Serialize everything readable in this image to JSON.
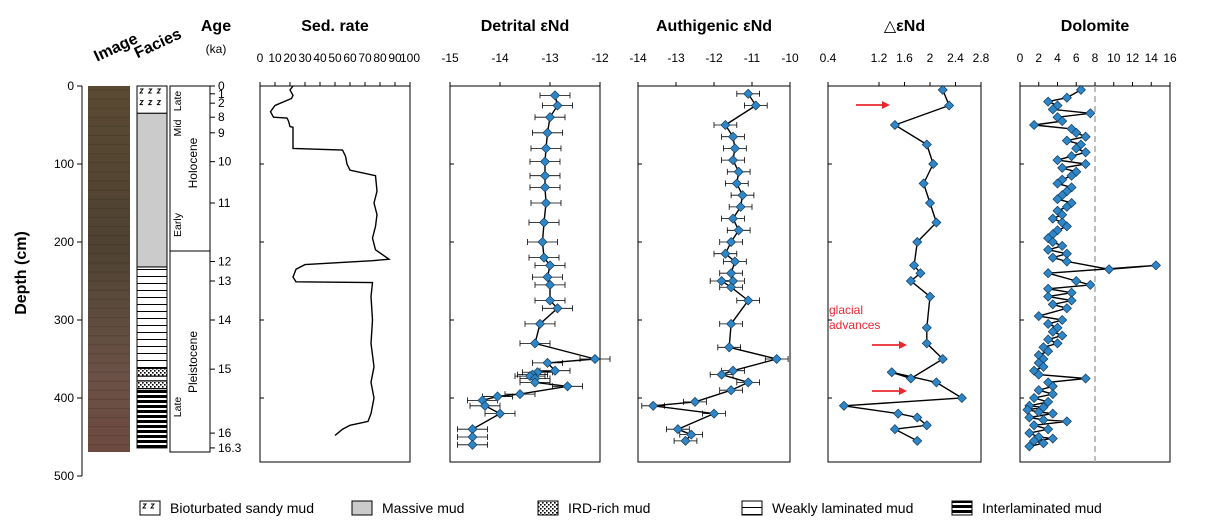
{
  "headers": {
    "image": "Image",
    "facies": "Facies",
    "age": "Age",
    "age_unit": "(ka)",
    "depth_axis": "Depth (cm)"
  },
  "depth_axis": {
    "min": 0,
    "max": 500,
    "ticks": [
      0,
      100,
      200,
      300,
      400,
      500
    ]
  },
  "age_ticks": [
    {
      "label": "0",
      "depth": 0
    },
    {
      "label": "1",
      "depth": 10
    },
    {
      "label": "2",
      "depth": 22
    },
    {
      "label": "8",
      "depth": 40
    },
    {
      "label": "9",
      "depth": 60
    },
    {
      "label": "10",
      "depth": 97
    },
    {
      "label": "11",
      "depth": 150
    },
    {
      "label": "12",
      "depth": 225
    },
    {
      "label": "13",
      "depth": 250
    },
    {
      "label": "14",
      "depth": 300
    },
    {
      "label": "15",
      "depth": 363
    },
    {
      "label": "16",
      "depth": 445
    },
    {
      "label": "16.3",
      "depth": 464
    }
  ],
  "epochs": {
    "holocene": "Holocene",
    "late_h": "Late",
    "mid_h": "Mid",
    "early_h": "Early",
    "pleistocene": "Pleistocene",
    "late_p": "Late"
  },
  "facies_units": [
    {
      "type": "bioturbated",
      "top": 0,
      "bottom": 35
    },
    {
      "type": "massive",
      "top": 35,
      "bottom": 232
    },
    {
      "type": "weak",
      "top": 232,
      "bottom": 362
    },
    {
      "type": "ird",
      "top": 362,
      "bottom": 372
    },
    {
      "type": "weak",
      "top": 372,
      "bottom": 378
    },
    {
      "type": "ird",
      "top": 378,
      "bottom": 388
    },
    {
      "type": "inter",
      "top": 388,
      "bottom": 464
    }
  ],
  "legend": [
    {
      "type": "bioturbated",
      "label": "Bioturbated sandy mud"
    },
    {
      "type": "massive",
      "label": "Massive mud"
    },
    {
      "type": "ird",
      "label": "IRD-rich mud"
    },
    {
      "type": "weak",
      "label": "Weakly laminated mud"
    },
    {
      "type": "inter",
      "label": "Interlaminated mud"
    }
  ],
  "annotations": {
    "glacial_line1": "glacial",
    "glacial_line2": "advances",
    "arrow_color": "#e8282e"
  },
  "colors": {
    "marker": "#2f86c6",
    "line": "#000000",
    "massive": "#cbcbcb",
    "dashed": "#aaaaaa"
  },
  "chart_data": [
    {
      "type": "line",
      "title": "Sed. rate",
      "xlim": [
        0,
        100
      ],
      "ticks": [
        0,
        10,
        20,
        30,
        40,
        50,
        60,
        70,
        80,
        90,
        100
      ],
      "points": [
        [
          22,
          0
        ],
        [
          20,
          5
        ],
        [
          22,
          12
        ],
        [
          21,
          16
        ],
        [
          10,
          25
        ],
        [
          7,
          33
        ],
        [
          9,
          40
        ],
        [
          18,
          41
        ],
        [
          19,
          45
        ],
        [
          20,
          52
        ],
        [
          22,
          53
        ],
        [
          22,
          65
        ],
        [
          22,
          80
        ],
        [
          55,
          82
        ],
        [
          57,
          90
        ],
        [
          58,
          100
        ],
        [
          60,
          108
        ],
        [
          77,
          115
        ],
        [
          78,
          135
        ],
        [
          76,
          150
        ],
        [
          78,
          165
        ],
        [
          77,
          180
        ],
        [
          75,
          195
        ],
        [
          77,
          210
        ],
        [
          86,
          222
        ],
        [
          75,
          224
        ],
        [
          30,
          229
        ],
        [
          24,
          235
        ],
        [
          22,
          245
        ],
        [
          24,
          251
        ],
        [
          75,
          252
        ],
        [
          74,
          270
        ],
        [
          75,
          300
        ],
        [
          74,
          330
        ],
        [
          76,
          360
        ],
        [
          74,
          380
        ],
        [
          76,
          400
        ],
        [
          74,
          420
        ],
        [
          72,
          430
        ],
        [
          60,
          435
        ],
        [
          55,
          440
        ],
        [
          50,
          448
        ]
      ]
    },
    {
      "type": "scatter",
      "title": "Detrital εNd",
      "xlim": [
        -15,
        -12
      ],
      "ticks": [
        -15,
        -14,
        -13,
        -12
      ],
      "points": [
        [
          -12.9,
          12
        ],
        [
          -12.85,
          25
        ],
        [
          -13.0,
          40
        ],
        [
          -13.05,
          60
        ],
        [
          -13.08,
          80
        ],
        [
          -13.1,
          97
        ],
        [
          -13.1,
          115
        ],
        [
          -13.1,
          130
        ],
        [
          -13.08,
          150
        ],
        [
          -13.12,
          175
        ],
        [
          -13.15,
          200
        ],
        [
          -13.12,
          220
        ],
        [
          -13.0,
          230
        ],
        [
          -13.05,
          245
        ],
        [
          -13.0,
          255
        ],
        [
          -13.0,
          275
        ],
        [
          -12.85,
          285
        ],
        [
          -13.2,
          305
        ],
        [
          -13.3,
          330
        ],
        [
          -12.1,
          350
        ],
        [
          -13.05,
          355
        ],
        [
          -12.9,
          365
        ],
        [
          -13.25,
          367
        ],
        [
          -13.35,
          370
        ],
        [
          -13.4,
          372
        ],
        [
          -13.3,
          375
        ],
        [
          -13.3,
          380
        ],
        [
          -12.65,
          385
        ],
        [
          -13.6,
          395
        ],
        [
          -14.05,
          398
        ],
        [
          -14.35,
          403
        ],
        [
          -14.3,
          410
        ],
        [
          -14.0,
          420
        ],
        [
          -14.55,
          440
        ],
        [
          -14.55,
          450
        ],
        [
          -14.55,
          460
        ]
      ]
    },
    {
      "type": "scatter",
      "title": "Authigenic εNd",
      "xlim": [
        -14,
        -10
      ],
      "ticks": [
        -14,
        -13,
        -12,
        -11,
        -10
      ],
      "points": [
        [
          -11.1,
          10
        ],
        [
          -10.9,
          25
        ],
        [
          -11.7,
          50
        ],
        [
          -11.5,
          65
        ],
        [
          -11.45,
          80
        ],
        [
          -11.5,
          95
        ],
        [
          -11.35,
          110
        ],
        [
          -11.4,
          125
        ],
        [
          -11.25,
          140
        ],
        [
          -11.3,
          155
        ],
        [
          -11.5,
          170
        ],
        [
          -11.35,
          185
        ],
        [
          -11.55,
          200
        ],
        [
          -11.7,
          215
        ],
        [
          -11.45,
          225
        ],
        [
          -11.55,
          240
        ],
        [
          -11.5,
          250
        ],
        [
          -11.8,
          250
        ],
        [
          -11.55,
          258
        ],
        [
          -11.1,
          275
        ],
        [
          -11.55,
          305
        ],
        [
          -11.6,
          335
        ],
        [
          -10.35,
          350
        ],
        [
          -11.5,
          365
        ],
        [
          -11.8,
          370
        ],
        [
          -11.1,
          380
        ],
        [
          -11.55,
          390
        ],
        [
          -12.5,
          405
        ],
        [
          -13.6,
          410
        ],
        [
          -12.0,
          420
        ],
        [
          -12.95,
          440
        ],
        [
          -12.6,
          447
        ],
        [
          -12.75,
          455
        ]
      ]
    },
    {
      "type": "scatter",
      "title": "△εNd",
      "xlim": [
        0.4,
        2.8
      ],
      "ticks": [
        0.4,
        1.2,
        1.6,
        2.0,
        2.4,
        2.8
      ],
      "points": [
        [
          2.2,
          5
        ],
        [
          2.3,
          25
        ],
        [
          1.45,
          50
        ],
        [
          1.95,
          75
        ],
        [
          2.05,
          100
        ],
        [
          1.9,
          125
        ],
        [
          2.0,
          150
        ],
        [
          2.1,
          175
        ],
        [
          1.8,
          200
        ],
        [
          1.75,
          230
        ],
        [
          1.85,
          240
        ],
        [
          1.7,
          250
        ],
        [
          2.0,
          270
        ],
        [
          1.95,
          310
        ],
        [
          1.95,
          330
        ],
        [
          2.2,
          350
        ],
        [
          1.7,
          375
        ],
        [
          1.4,
          367
        ],
        [
          2.1,
          380
        ],
        [
          2.5,
          400
        ],
        [
          0.65,
          410
        ],
        [
          1.5,
          420
        ],
        [
          1.8,
          425
        ],
        [
          1.95,
          435
        ],
        [
          1.45,
          440
        ],
        [
          1.8,
          455
        ]
      ]
    },
    {
      "type": "scatter",
      "title": "Dolomite",
      "xlim": [
        0,
        16
      ],
      "ticks": [
        0,
        2,
        4,
        6,
        8,
        10,
        12,
        14,
        16
      ],
      "reference_line": 8,
      "points": [
        [
          6.5,
          5
        ],
        [
          5,
          15
        ],
        [
          3,
          20
        ],
        [
          4,
          25
        ],
        [
          3.5,
          30
        ],
        [
          7.5,
          35
        ],
        [
          4,
          40
        ],
        [
          4.5,
          45
        ],
        [
          1.5,
          50
        ],
        [
          5.5,
          55
        ],
        [
          6,
          60
        ],
        [
          7,
          65
        ],
        [
          5,
          70
        ],
        [
          6.5,
          75
        ],
        [
          6,
          80
        ],
        [
          7,
          85
        ],
        [
          5.5,
          90
        ],
        [
          4,
          95
        ],
        [
          7,
          100
        ],
        [
          4.5,
          105
        ],
        [
          6,
          110
        ],
        [
          5.5,
          115
        ],
        [
          4.5,
          120
        ],
        [
          4,
          125
        ],
        [
          5.5,
          130
        ],
        [
          5,
          135
        ],
        [
          4.5,
          140
        ],
        [
          4,
          145
        ],
        [
          5.5,
          150
        ],
        [
          5,
          155
        ],
        [
          4,
          160
        ],
        [
          4.5,
          165
        ],
        [
          3.5,
          170
        ],
        [
          4.5,
          175
        ],
        [
          5,
          180
        ],
        [
          4,
          185
        ],
        [
          3.5,
          190
        ],
        [
          3,
          195
        ],
        [
          3.5,
          200
        ],
        [
          4.5,
          205
        ],
        [
          3,
          210
        ],
        [
          5,
          215
        ],
        [
          3.5,
          220
        ],
        [
          5,
          225
        ],
        [
          9.5,
          235
        ],
        [
          14.5,
          230
        ],
        [
          3,
          240
        ],
        [
          6,
          250
        ],
        [
          7.5,
          255
        ],
        [
          3,
          260
        ],
        [
          5.5,
          265
        ],
        [
          3,
          270
        ],
        [
          5.5,
          275
        ],
        [
          3.5,
          280
        ],
        [
          5,
          285
        ],
        [
          2,
          295
        ],
        [
          4.5,
          300
        ],
        [
          3,
          305
        ],
        [
          4,
          310
        ],
        [
          3.5,
          315
        ],
        [
          4.5,
          320
        ],
        [
          3,
          325
        ],
        [
          4,
          330
        ],
        [
          2.5,
          335
        ],
        [
          3,
          340
        ],
        [
          2,
          345
        ],
        [
          2.5,
          350
        ],
        [
          2,
          355
        ],
        [
          2.5,
          360
        ],
        [
          1.5,
          365
        ],
        [
          2,
          370
        ],
        [
          7,
          375
        ],
        [
          3,
          380
        ],
        [
          3.5,
          385
        ],
        [
          2,
          390
        ],
        [
          3.5,
          395
        ],
        [
          1.5,
          400
        ],
        [
          3,
          405
        ],
        [
          1,
          410
        ],
        [
          2.5,
          412
        ],
        [
          0.8,
          415
        ],
        [
          2,
          418
        ],
        [
          3.5,
          420
        ],
        [
          1,
          425
        ],
        [
          2.5,
          428
        ],
        [
          5,
          430
        ],
        [
          1.5,
          435
        ],
        [
          3,
          440
        ],
        [
          1,
          445
        ],
        [
          2,
          450
        ],
        [
          3.5,
          452
        ],
        [
          1.5,
          455
        ],
        [
          2.5,
          458
        ],
        [
          1,
          462
        ]
      ]
    }
  ]
}
